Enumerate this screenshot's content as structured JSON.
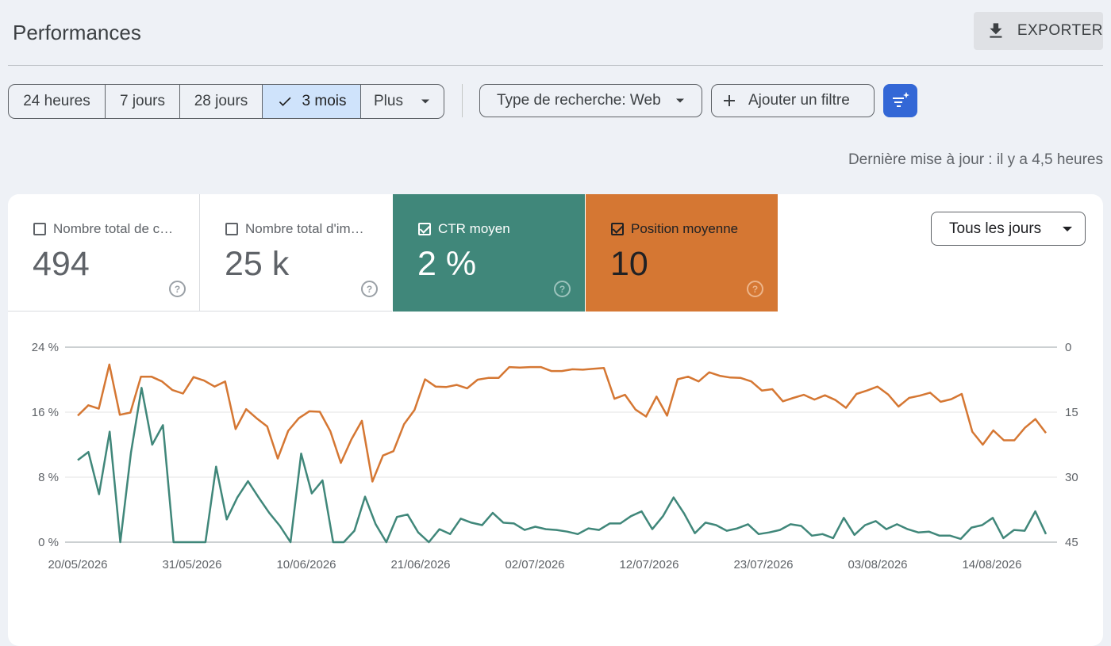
{
  "page": {
    "title": "Performances",
    "export_label": "EXPORTER",
    "last_updated": "Dernière mise à jour : il y a 4,5 heures"
  },
  "date_ranges": [
    {
      "label": "24 heures",
      "selected": false
    },
    {
      "label": "7 jours",
      "selected": false
    },
    {
      "label": "28 jours",
      "selected": false
    },
    {
      "label": "3 mois",
      "selected": true
    },
    {
      "label": "Plus",
      "selected": false
    }
  ],
  "filters": {
    "search_type": "Type de recherche: Web",
    "add_filter": "Ajouter un filtre"
  },
  "metrics": [
    {
      "label": "Nombre total de c…",
      "value": "494",
      "checked": false
    },
    {
      "label": "Nombre total d'im…",
      "value": "25 k",
      "checked": false
    },
    {
      "label": "CTR moyen",
      "value": "2 %",
      "checked": true,
      "color": "#40877a"
    },
    {
      "label": "Position moyenne",
      "value": "10",
      "checked": true,
      "color": "#d57733"
    }
  ],
  "granularity": "Tous les jours",
  "colors": {
    "ctr": "#40877a",
    "position": "#d57733",
    "accent": "#3367d6",
    "selected_segment": "#cfe3fb"
  },
  "chart_data": {
    "type": "line",
    "x_labels": [
      "20/05/2026",
      "31/05/2026",
      "10/06/2026",
      "21/06/2026",
      "02/07/2026",
      "12/07/2026",
      "23/07/2026",
      "03/08/2026",
      "14/08/2026"
    ],
    "y_left": {
      "ticks": [
        "24 %",
        "16 %",
        "8 %",
        "0 %"
      ],
      "range": [
        0,
        24
      ]
    },
    "y_right": {
      "ticks": [
        "0",
        "15",
        "30",
        "45"
      ],
      "range": [
        0,
        45
      ],
      "inverted": true
    },
    "series": [
      {
        "name": "CTR moyen",
        "axis": "left",
        "color": "#40877a",
        "values": [
          10.1,
          11.1,
          5.9,
          13.6,
          0,
          11.0,
          19.0,
          12.0,
          14.4,
          0,
          0,
          0,
          0,
          9.3,
          2.8,
          5.5,
          7.5,
          5.5,
          3.6,
          2.0,
          0,
          10.9,
          6.0,
          7.6,
          0,
          0,
          1.4,
          5.6,
          2.2,
          0,
          3.1,
          3.4,
          1.2,
          0,
          1.6,
          1.0,
          2.9,
          2.4,
          2.1,
          3.6,
          2.4,
          2.3,
          1.5,
          1.9,
          1.6,
          1.5,
          1.3,
          1.0,
          1.7,
          1.5,
          2.3,
          2.3,
          3.2,
          3.8,
          1.6,
          3.2,
          5.5,
          3.5,
          1.1,
          2.4,
          2.1,
          1.4,
          1.7,
          2.2,
          1.0,
          1.2,
          1.5,
          2.2,
          2.0,
          0.8,
          1.0,
          0.5,
          3.0,
          0.9,
          2.1,
          2.6,
          1.6,
          2.2,
          1.6,
          1.2,
          1.3,
          0.8,
          0.8,
          0.4,
          1.8,
          2.1,
          3.0,
          0.5,
          1.5,
          1.4,
          3.8,
          1.0
        ]
      },
      {
        "name": "Position moyenne",
        "axis": "right",
        "color": "#d57733",
        "values": [
          15.8,
          13.4,
          14.2,
          4.0,
          15.6,
          15.1,
          6.8,
          6.8,
          7.9,
          9.9,
          10.7,
          6.9,
          7.7,
          9.1,
          7.9,
          18.9,
          14.3,
          16.4,
          18.3,
          25.7,
          19.3,
          16.4,
          14.8,
          14.9,
          19.4,
          26.7,
          21.3,
          17.0,
          31.0,
          25.0,
          24.0,
          17.8,
          14.5,
          7.4,
          9.1,
          9.2,
          8.7,
          9.5,
          7.5,
          7.1,
          7.1,
          4.6,
          4.7,
          4.6,
          4.6,
          5.5,
          5.5,
          5.1,
          5.2,
          5.0,
          4.8,
          11.9,
          11.0,
          14.4,
          16.0,
          11.4,
          15.8,
          7.4,
          6.8,
          7.9,
          5.8,
          6.6,
          7.0,
          7.1,
          7.9,
          10.0,
          9.7,
          12.5,
          11.7,
          11.0,
          12.1,
          11.1,
          12.2,
          14.0,
          10.8,
          10.0,
          9.1,
          10.9,
          13.7,
          11.7,
          11.2,
          10.5,
          12.6,
          12.0,
          10.8,
          19.5,
          22.5,
          19.2,
          21.5,
          21.5,
          18.6,
          16.6,
          19.8
        ]
      }
    ],
    "grid": true
  }
}
